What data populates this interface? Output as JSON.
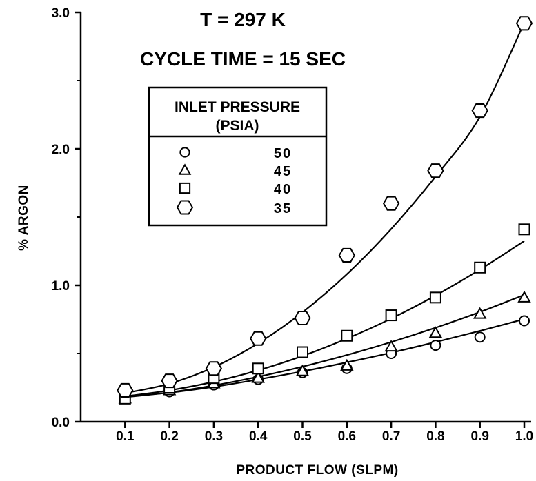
{
  "chart_data": {
    "type": "scatter",
    "annotations": [
      "T = 297 K",
      "CYCLE TIME = 15 SEC"
    ],
    "xlabel": "PRODUCT FLOW (SLPM)",
    "ylabel": "% ARGON",
    "xlim": [
      0.0,
      1.0
    ],
    "ylim": [
      0.0,
      3.0
    ],
    "x_ticks": [
      "0.1",
      "0.2",
      "0.3",
      "0.4",
      "0.5",
      "0.6",
      "0.7",
      "0.8",
      "0.9",
      "1.0"
    ],
    "y_ticks": [
      "0.0",
      "1.0",
      "2.0",
      "3.0"
    ],
    "y_minor_ticks": [
      0.5,
      1.5,
      2.5
    ],
    "grid": false,
    "legend": {
      "title_line1": "INLET PRESSURE",
      "title_line2": "(PSIA)",
      "placement": "top-center"
    },
    "x": [
      0.1,
      0.2,
      0.3,
      0.4,
      0.5,
      0.6,
      0.7,
      0.8,
      0.9,
      1.0
    ],
    "series": [
      {
        "name": "50",
        "marker": "circle",
        "values": [
          0.18,
          0.22,
          0.27,
          0.31,
          0.36,
          0.39,
          0.5,
          0.56,
          0.62,
          0.74
        ],
        "fit": [
          0.185,
          0.213,
          0.256,
          0.31,
          0.369,
          0.435,
          0.506,
          0.584,
          0.666,
          0.752
        ]
      },
      {
        "name": "45",
        "marker": "triangle",
        "values": [
          0.17,
          0.23,
          0.28,
          0.32,
          0.37,
          0.41,
          0.55,
          0.65,
          0.79,
          0.91
        ],
        "fit": [
          0.18,
          0.215,
          0.266,
          0.33,
          0.404,
          0.489,
          0.584,
          0.689,
          0.804,
          0.93
        ]
      },
      {
        "name": "40",
        "marker": "square",
        "values": [
          0.17,
          0.25,
          0.32,
          0.39,
          0.51,
          0.63,
          0.78,
          0.91,
          1.13,
          1.41
        ],
        "fit": [
          0.186,
          0.23,
          0.293,
          0.377,
          0.482,
          0.609,
          0.756,
          0.925,
          1.115,
          1.325
        ]
      },
      {
        "name": "35",
        "marker": "hexagon",
        "values": [
          0.23,
          0.3,
          0.39,
          0.61,
          0.76,
          1.22,
          1.6,
          1.84,
          2.28,
          2.92
        ],
        "fit": [
          0.21,
          0.279,
          0.4,
          0.575,
          0.802,
          1.081,
          1.413,
          1.797,
          2.235,
          2.925
        ]
      }
    ]
  }
}
